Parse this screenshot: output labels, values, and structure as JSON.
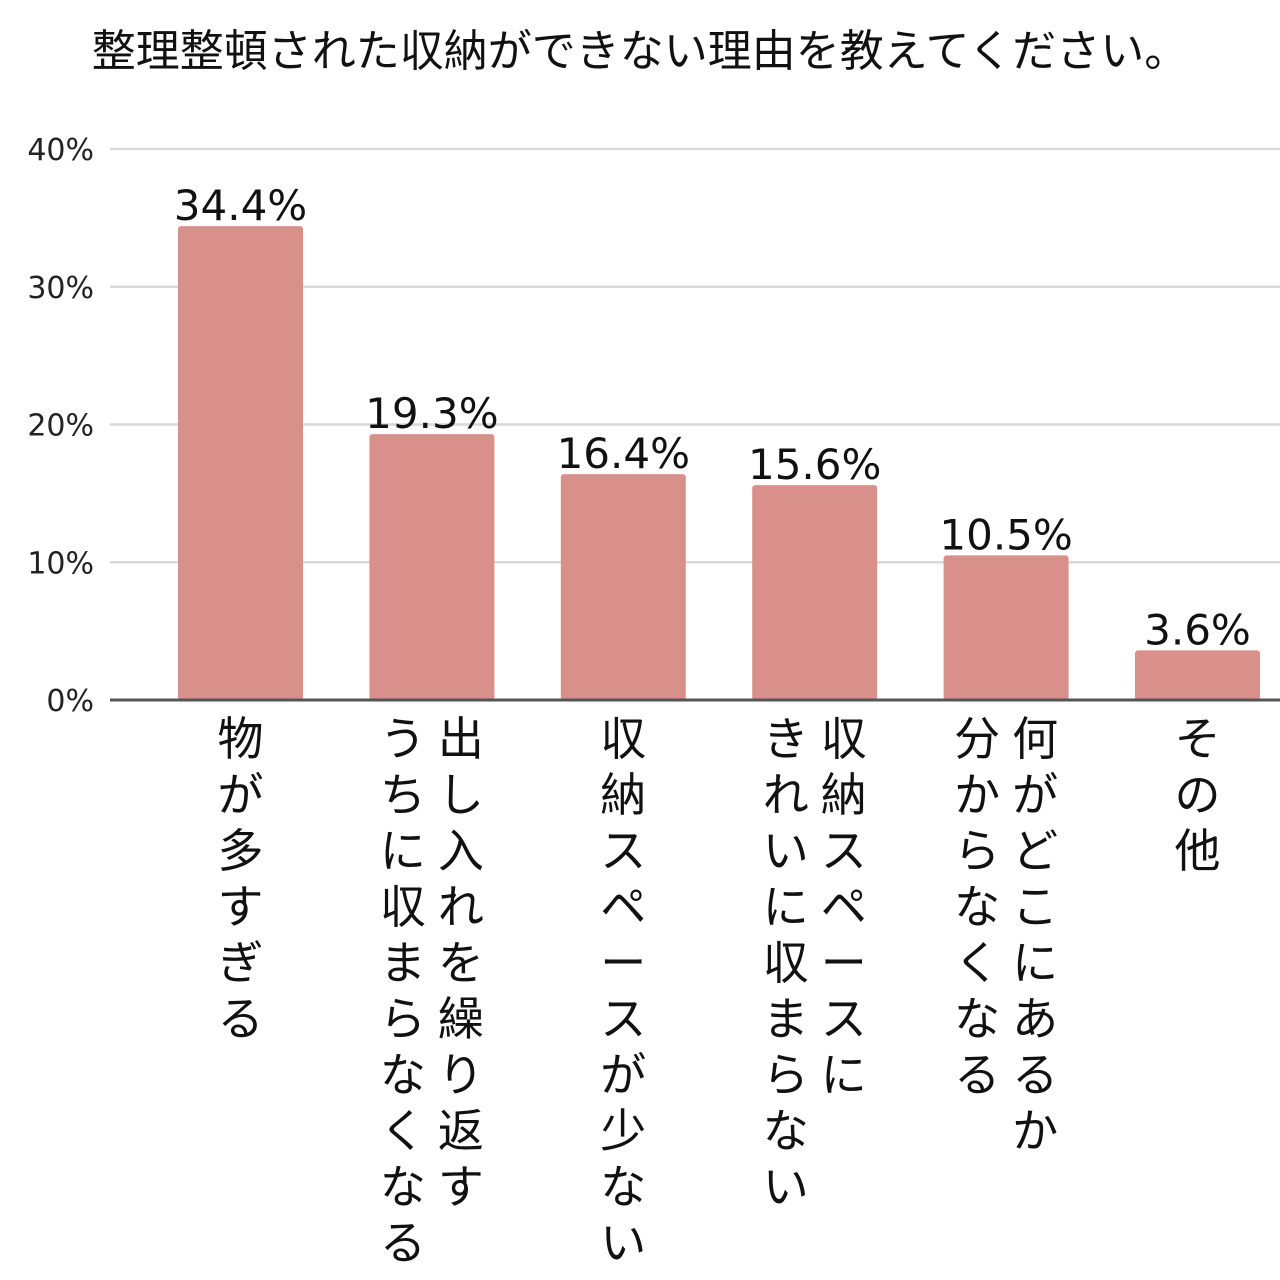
{
  "chart_data": {
    "type": "bar",
    "title": "整理整頓された収納ができない理由を教えてください。",
    "categories": [
      [
        "物が多すぎる"
      ],
      [
        "出し入れを繰り返す",
        "うちに収まらなくなる"
      ],
      [
        "収納スペースが少ない"
      ],
      [
        "収納スペースに",
        "きれいに収まらない"
      ],
      [
        "何がどこにあるか",
        "分からなくなる"
      ],
      [
        "その他"
      ]
    ],
    "values": [
      34.4,
      19.3,
      16.4,
      15.6,
      10.5,
      3.6
    ],
    "data_labels": [
      "34.4%",
      "19.3%",
      "16.4%",
      "15.6%",
      "10.5%",
      "3.6%"
    ],
    "ylim": [
      0,
      40
    ],
    "yticks": [
      0,
      10,
      20,
      30,
      40
    ],
    "ytick_labels": [
      "0%",
      "10%",
      "20%",
      "30%",
      "40%"
    ],
    "xlabel": "",
    "ylabel": "",
    "grid": true,
    "bar_color": "#d9908b",
    "grid_color": "#d9d9d9",
    "axis_color": "#555555"
  }
}
